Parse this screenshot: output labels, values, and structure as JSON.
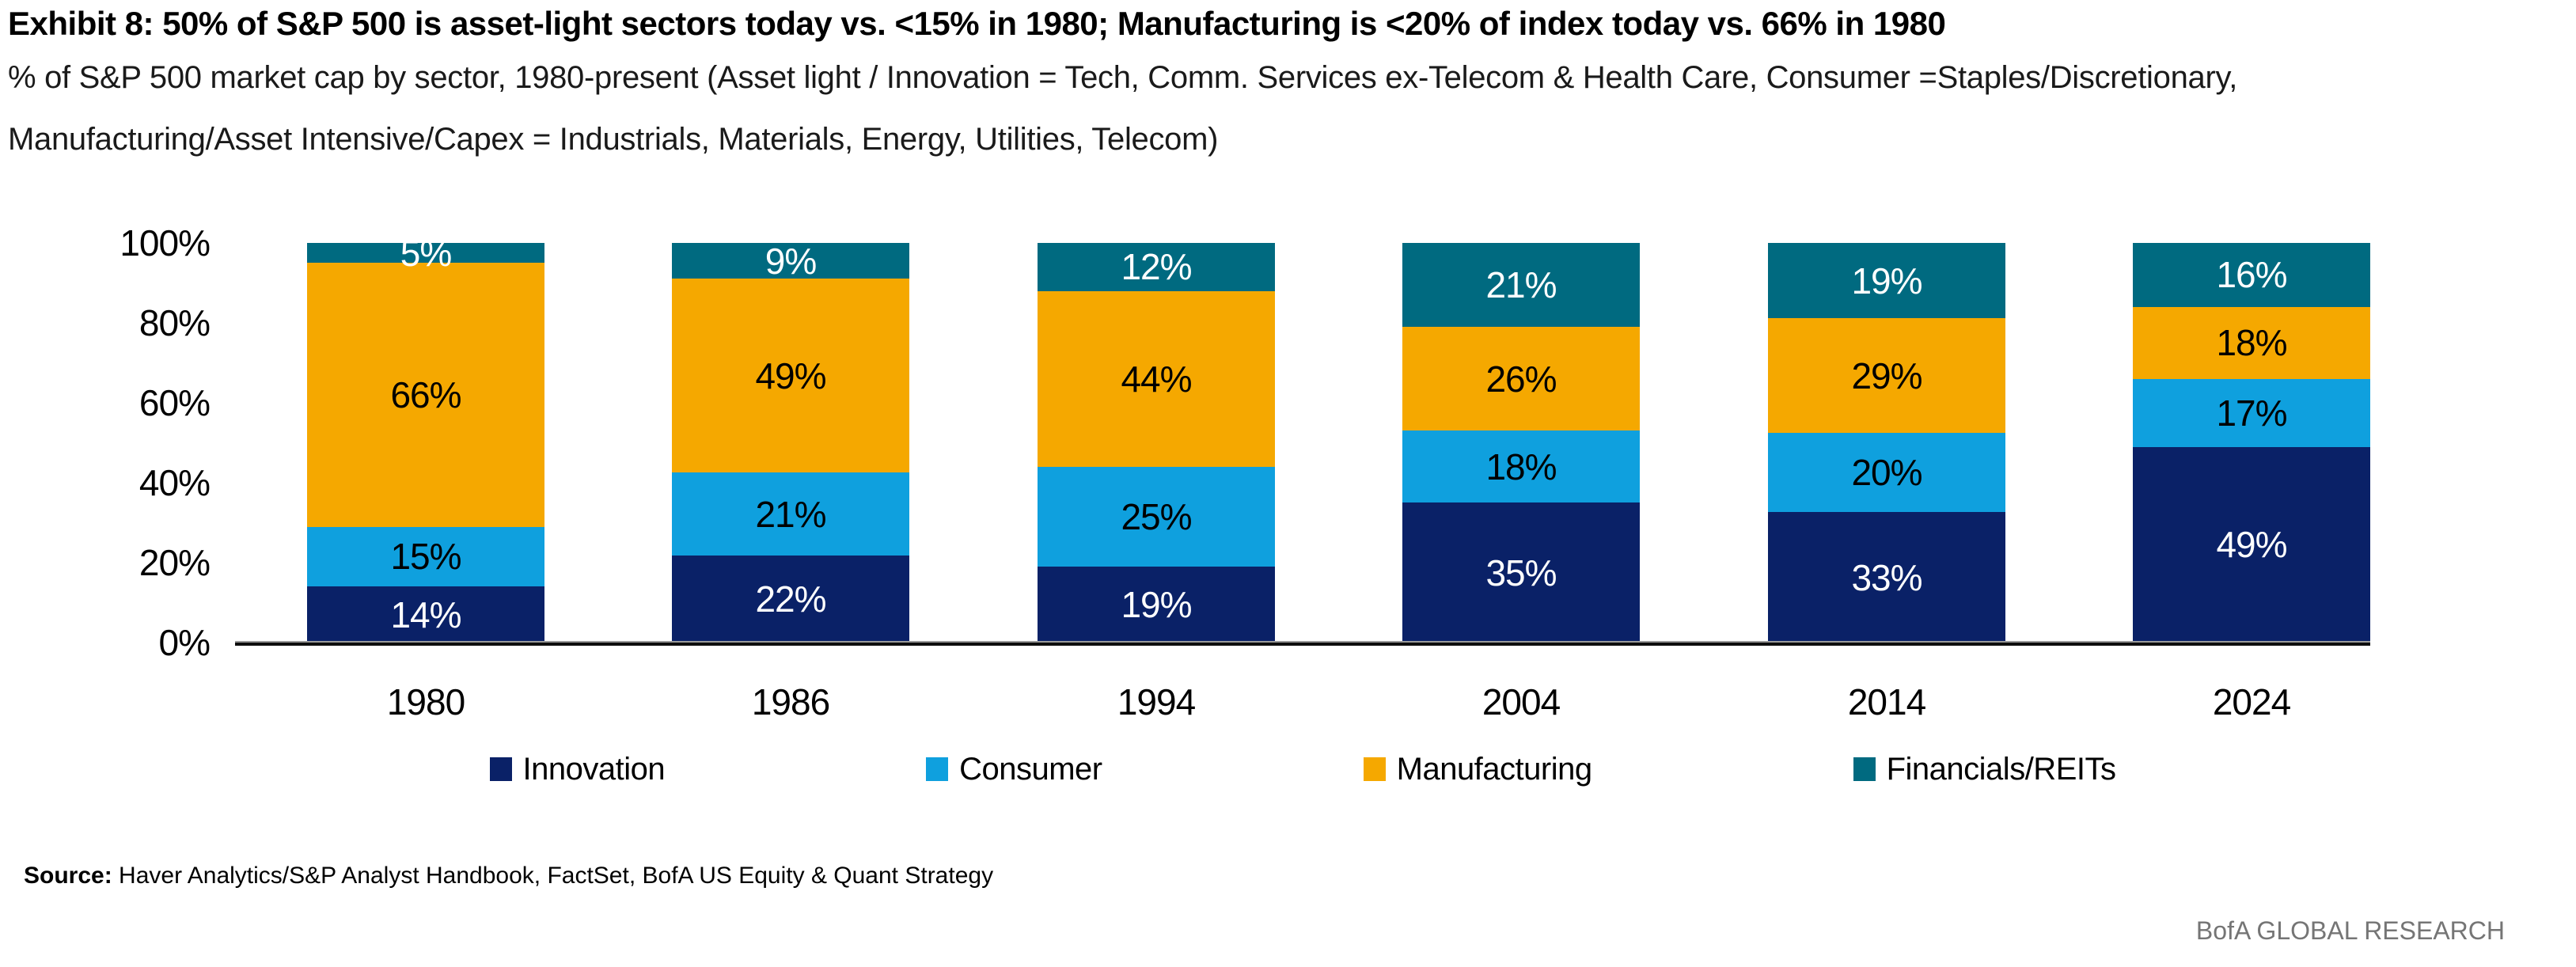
{
  "title": "Exhibit 8: 50% of S&P 500 is asset-light sectors today vs. <15% in 1980; Manufacturing is <20% of index today vs. 66% in 1980",
  "subtitle": {
    "line1": "% of S&P 500 market cap by sector, 1980-present (Asset light / Innovation = Tech, Comm. Services ex-Telecom & Health Care, Consumer =Staples/Discretionary,",
    "line2": "Manufacturing/Asset Intensive/Capex = Industrials, Materials, Energy, Utilities, Telecom)"
  },
  "chart_data": {
    "type": "bar",
    "stacked": true,
    "unit": "%",
    "categories": [
      "1980",
      "1986",
      "1994",
      "2004",
      "2014",
      "2024"
    ],
    "series": [
      {
        "name": "Innovation",
        "color": "#0A2167",
        "label_color": "#FFFFFF",
        "values": [
          14,
          22,
          19,
          35,
          33,
          49
        ]
      },
      {
        "name": "Consumer",
        "color": "#0FA0DE",
        "label_color": "#000000",
        "values": [
          15,
          21,
          25,
          18,
          20,
          17
        ]
      },
      {
        "name": "Manufacturing",
        "color": "#F5A800",
        "label_color": "#000000",
        "values": [
          66,
          49,
          44,
          26,
          29,
          18
        ]
      },
      {
        "name": "Financials/REITs",
        "color": "#006A80",
        "label_color": "#FFFFFF",
        "values": [
          5,
          9,
          12,
          21,
          19,
          16
        ]
      }
    ],
    "yticks": [
      "0%",
      "20%",
      "40%",
      "60%",
      "80%",
      "100%"
    ],
    "ylim": [
      0,
      100
    ],
    "xlabel": "",
    "ylabel": "",
    "grid": false,
    "legend_position": "bottom",
    "data_label_format": "value%"
  },
  "source": {
    "label": "Source:",
    "text": "Haver Analytics/S&P Analyst Handbook, FactSet, BofA US Equity & Quant Strategy"
  },
  "footer": {
    "brand": "BofA GLOBAL RESEARCH"
  }
}
